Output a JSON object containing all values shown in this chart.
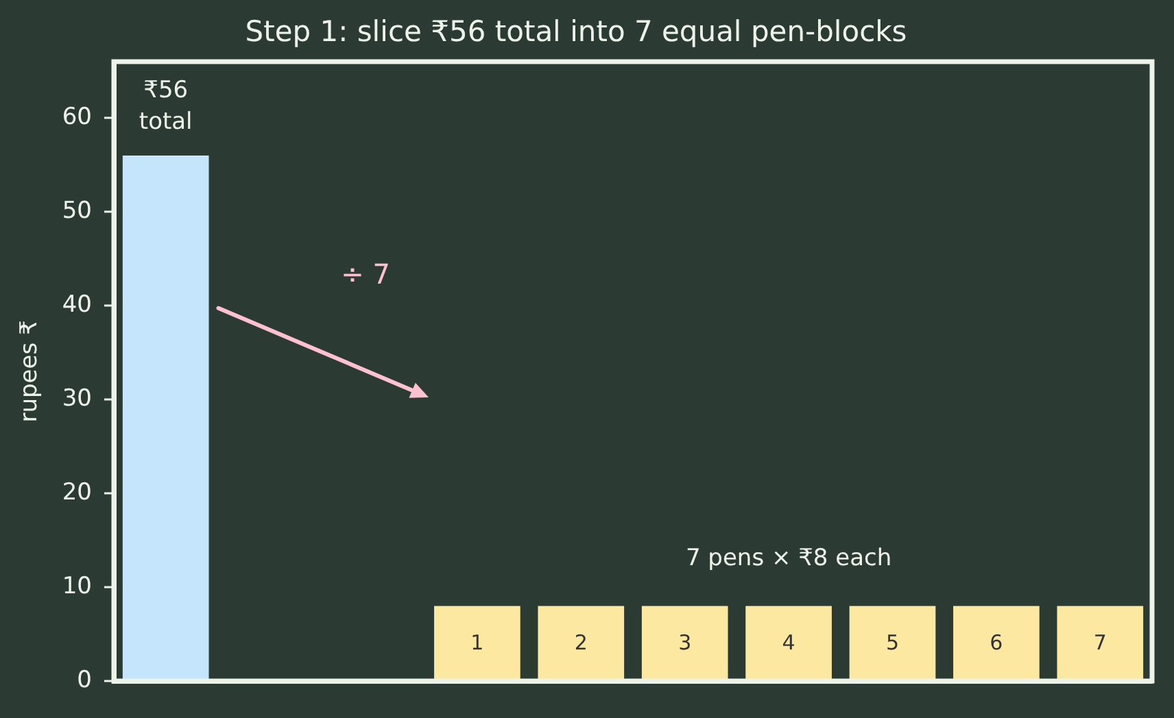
{
  "chart_data": {
    "type": "bar",
    "title": "Step 1: slice ₹56 total into 7 equal pen-blocks",
    "ylabel": "rupees ₹",
    "categories": [
      null,
      null,
      null,
      "1",
      "2",
      "3",
      "4",
      "5",
      "6",
      "7"
    ],
    "series": [
      {
        "color": "#c5e5fc",
        "values": [
          56,
          null,
          null,
          null,
          null,
          null,
          null,
          null,
          null,
          null
        ],
        "value_labels": [
          "₹56\ntotal",
          null,
          null,
          null,
          null,
          null,
          null,
          null,
          null,
          null
        ]
      },
      {
        "color": "#fde8a2",
        "values": [
          null,
          null,
          null,
          8,
          8,
          8,
          8,
          8,
          8,
          8
        ]
      }
    ],
    "ylim": [
      0,
      66
    ],
    "yticks": [
      0,
      10,
      20,
      30,
      40,
      50,
      60
    ],
    "annotations": [
      "÷ 7",
      "7 pens × ₹8 each"
    ]
  }
}
